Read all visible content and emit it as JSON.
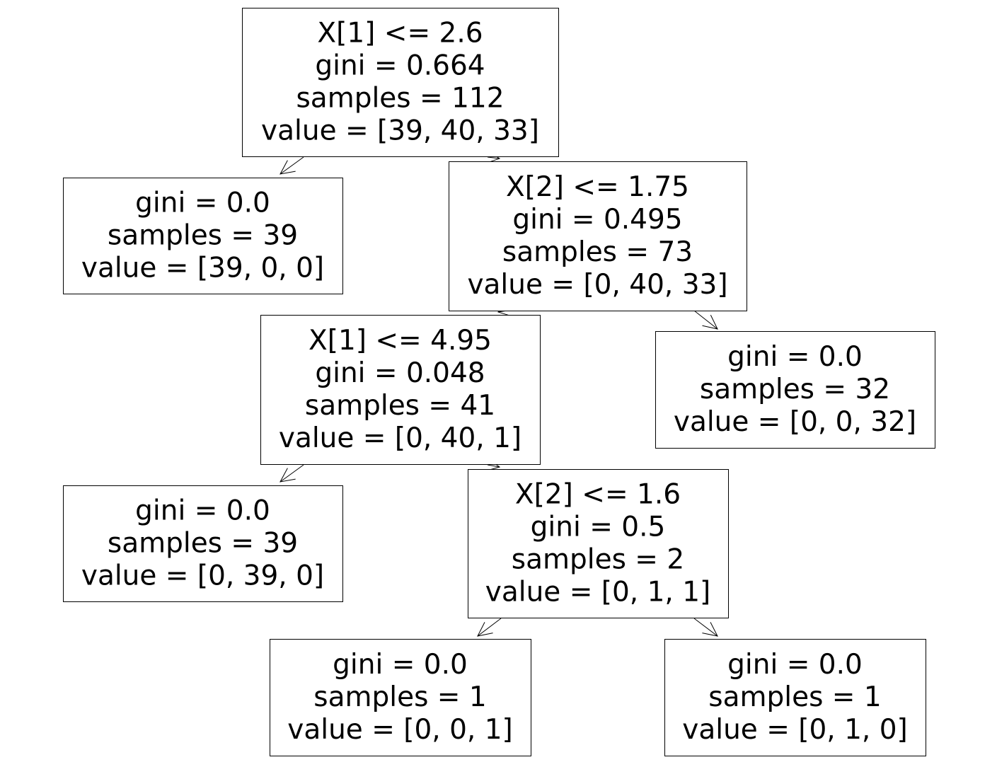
{
  "nodes": [
    {
      "lines": [
        "X[1] <= 2.6",
        "gini = 0.664",
        "samples = 112",
        "value = [39, 40, 33]"
      ]
    },
    {
      "lines": [
        "gini = 0.0",
        "samples = 39",
        "value = [39, 0, 0]"
      ]
    },
    {
      "lines": [
        "X[2] <= 1.75",
        "gini = 0.495",
        "samples = 73",
        "value = [0, 40, 33]"
      ]
    },
    {
      "lines": [
        "X[1] <= 4.95",
        "gini = 0.048",
        "samples = 41",
        "value = [0, 40, 1]"
      ]
    },
    {
      "lines": [
        "gini = 0.0",
        "samples = 32",
        "value = [0, 0, 32]"
      ]
    },
    {
      "lines": [
        "gini = 0.0",
        "samples = 39",
        "value = [0, 39, 0]"
      ]
    },
    {
      "lines": [
        "X[2] <= 1.6",
        "gini = 0.5",
        "samples = 2",
        "value = [0, 1, 1]"
      ]
    },
    {
      "lines": [
        "gini = 0.0",
        "samples = 1",
        "value = [0, 0, 1]"
      ]
    },
    {
      "lines": [
        "gini = 0.0",
        "samples = 1",
        "value = [0, 1, 0]"
      ]
    }
  ]
}
